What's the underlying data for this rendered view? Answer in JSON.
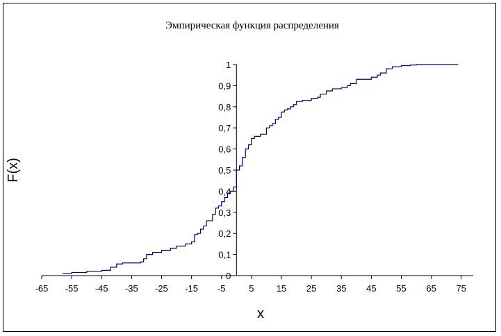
{
  "chart_data": {
    "type": "line",
    "title": "Эмпирическая функция распределения",
    "xlabel": "x",
    "ylabel": "F(x)",
    "xlim": [
      -65,
      79
    ],
    "ylim": [
      0,
      1
    ],
    "x_ticks": [
      -65,
      -55,
      -45,
      -35,
      -25,
      -15,
      -5,
      5,
      15,
      25,
      35,
      45,
      55,
      65,
      75
    ],
    "y_ticks": [
      0,
      0.1,
      0.2,
      0.3,
      0.4,
      0.5,
      0.6,
      0.7,
      0.8,
      0.9,
      1
    ],
    "x_tick_labels": [
      "-65",
      "-55",
      "-45",
      "-35",
      "-25",
      "-15",
      "-5",
      "5",
      "15",
      "25",
      "35",
      "45",
      "55",
      "65",
      "75"
    ],
    "y_tick_labels": [
      "0",
      "0,1",
      "0,2",
      "0,3",
      "0,4",
      "0,5",
      "0,6",
      "0,7",
      "0,8",
      "0,9",
      "1"
    ],
    "grid": false,
    "legend": "none",
    "line_color": "#000080",
    "series": [
      {
        "x": [
          -58,
          -55,
          -50,
          -45,
          -42,
          -40,
          -38,
          -35,
          -32,
          -31,
          -30,
          -28,
          -25,
          -22,
          -20,
          -17,
          -15,
          -14,
          -13,
          -12,
          -11,
          -10,
          -9,
          -8,
          -7,
          -6,
          -5,
          -4,
          -3,
          -2,
          -1,
          0,
          1,
          2,
          3,
          4,
          5,
          6,
          8,
          10,
          11,
          12,
          13,
          14,
          15,
          16,
          17,
          18,
          19,
          20,
          22,
          25,
          27,
          28,
          30,
          32,
          35,
          37,
          38,
          40,
          45,
          47,
          48,
          50,
          52,
          55,
          58,
          60,
          65,
          70,
          74
        ],
        "y": [
          0.01,
          0.015,
          0.02,
          0.025,
          0.04,
          0.055,
          0.06,
          0.06,
          0.065,
          0.08,
          0.1,
          0.11,
          0.12,
          0.13,
          0.14,
          0.15,
          0.16,
          0.195,
          0.2,
          0.22,
          0.235,
          0.26,
          0.26,
          0.29,
          0.32,
          0.33,
          0.35,
          0.37,
          0.39,
          0.4,
          0.42,
          0.5,
          0.52,
          0.56,
          0.6,
          0.62,
          0.65,
          0.66,
          0.67,
          0.7,
          0.71,
          0.72,
          0.74,
          0.75,
          0.775,
          0.785,
          0.79,
          0.8,
          0.81,
          0.825,
          0.83,
          0.84,
          0.845,
          0.86,
          0.875,
          0.885,
          0.89,
          0.9,
          0.91,
          0.93,
          0.94,
          0.95,
          0.96,
          0.98,
          0.99,
          0.995,
          0.998,
          1.0,
          1.0,
          1.0,
          1.0
        ]
      }
    ]
  }
}
